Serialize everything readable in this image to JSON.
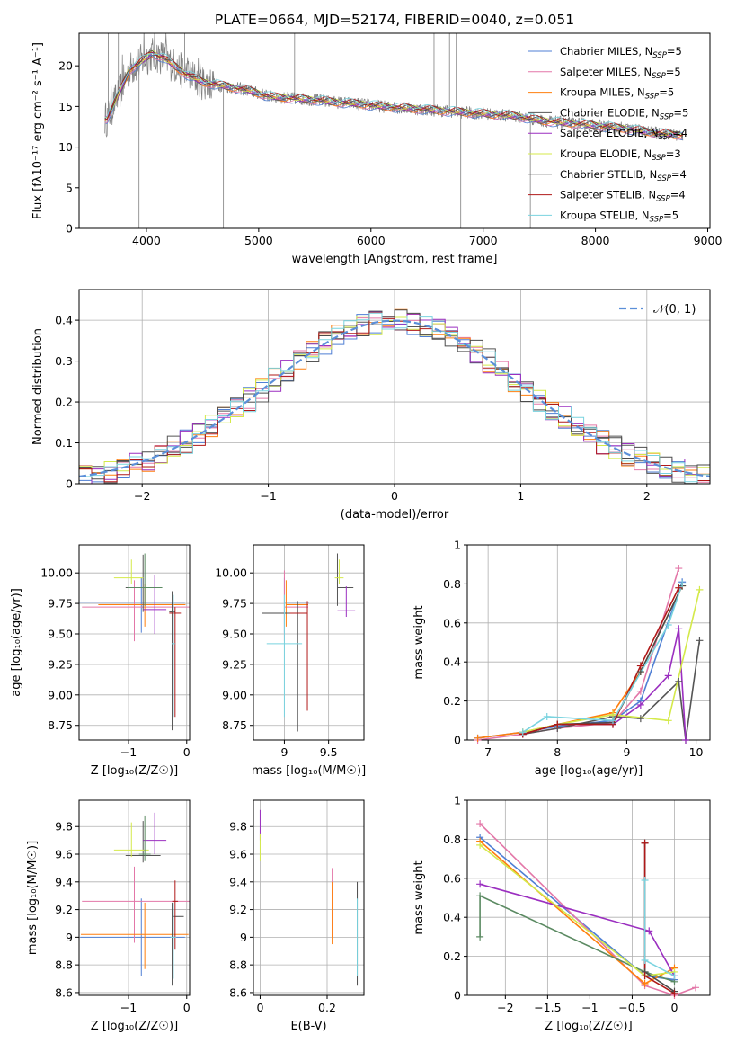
{
  "figure": {
    "title": "PLATE=0664, MJD=52174, FIBERID=0040, z=0.051"
  },
  "colors": {
    "chabrier_miles": "#4f7fd4",
    "salpeter_miles": "#e377a8",
    "kroupa_miles": "#ff7f0e",
    "chabrier_elodie": "#555555",
    "salpeter_elodie": "#9b2fc0",
    "kroupa_elodie": "#d4e94a",
    "chabrier_stelib": "#4b4b4b",
    "salpeter_stelib": "#b01919",
    "kroupa_stelib": "#79d3df",
    "data": "#7f7f7f",
    "gaussian": "#5b8fd9",
    "elodie_green": "#5b8a62"
  },
  "legend_spectrum": [
    {
      "name": "Chabrier MILES",
      "n": "5",
      "color_key": "chabrier_miles"
    },
    {
      "name": "Salpeter MILES",
      "n": "5",
      "color_key": "salpeter_miles"
    },
    {
      "name": "Kroupa MILES",
      "n": "5",
      "color_key": "kroupa_miles"
    },
    {
      "name": "Chabrier ELODIE",
      "n": "5",
      "color_key": "chabrier_elodie"
    },
    {
      "name": "Salpeter ELODIE",
      "n": "4",
      "color_key": "salpeter_elodie"
    },
    {
      "name": "Kroupa ELODIE",
      "n": "3",
      "color_key": "kroupa_elodie"
    },
    {
      "name": "Chabrier STELIB",
      "n": "4",
      "color_key": "chabrier_stelib"
    },
    {
      "name": "Salpeter STELIB",
      "n": "4",
      "color_key": "salpeter_stelib"
    },
    {
      "name": "Kroupa STELIB",
      "n": "5",
      "color_key": "kroupa_stelib"
    }
  ],
  "legend_hist": {
    "label": "𝒩(0, 1)"
  },
  "chart_data": [
    {
      "id": "spectrum",
      "type": "line",
      "xlabel": "wavelength [Angstrom, rest frame]",
      "ylabel": "Flux [fλ10⁻¹⁷ erg cm⁻² s⁻¹ A⁻¹]",
      "xlim": [
        3400,
        9020
      ],
      "ylim": [
        0,
        24
      ],
      "xticks": [
        4000,
        5000,
        6000,
        7000,
        8000,
        9000
      ],
      "yticks": [
        0,
        5,
        10,
        15,
        20
      ],
      "grid": false,
      "legend": "upper right",
      "continuum": {
        "x": [
          3650,
          3750,
          3850,
          3950,
          4050,
          4150,
          4250,
          4350,
          4500,
          4700,
          4900,
          5100,
          5300,
          5500,
          5700,
          5900,
          6100,
          6300,
          6500,
          6700,
          6900,
          7100,
          7300,
          7500,
          7700,
          7900,
          8100,
          8300,
          8500,
          8700
        ],
        "y": [
          13.5,
          16.5,
          19.5,
          20.5,
          21.5,
          21.0,
          20.0,
          19.0,
          18.0,
          17.5,
          17.0,
          16.2,
          16.0,
          15.8,
          15.5,
          15.3,
          15.0,
          14.8,
          14.6,
          14.4,
          14.2,
          14.0,
          13.8,
          13.3,
          13.0,
          12.8,
          12.5,
          12.2,
          11.8,
          11.5
        ]
      },
      "absorption_dips": [
        3934,
        4686,
        6800,
        7420
      ],
      "emission_spikes": [
        3660,
        3750,
        4340,
        5320,
        6562,
        6700,
        6760
      ]
    },
    {
      "id": "residual_hist",
      "type": "bar",
      "xlabel": "(data-model)/error",
      "ylabel": "Normed distribution",
      "xlim": [
        -2.5,
        2.5
      ],
      "ylim": [
        0,
        0.475
      ],
      "xticks": [
        -2,
        -1,
        0,
        1,
        2
      ],
      "yticks": [
        0.0,
        0.1,
        0.2,
        0.3,
        0.4
      ],
      "grid": true,
      "legend": "upper right",
      "bin_width": 0.1,
      "gaussian": {
        "mean": 0,
        "sigma": 1
      }
    },
    {
      "id": "age_vs_Z",
      "type": "scatter",
      "xlabel": "Z [log₁₀(Z/Z☉)]",
      "ylabel": "age  [log₁₀(age/yr)]",
      "xlim": [
        -1.85,
        0.05
      ],
      "ylim": [
        8.63,
        10.23
      ],
      "xticks": [
        -1,
        0
      ],
      "yticks": [
        8.75,
        9.0,
        9.25,
        9.5,
        9.75,
        10.0
      ],
      "ytick_labels": [
        "8.75",
        "9.00",
        "9.25",
        "9.50",
        "9.75",
        "10.00"
      ],
      "grid": true,
      "points": [
        {
          "series": "chabrier_miles",
          "x": -0.78,
          "y": 9.76,
          "xerr": [
            1.1,
            0.75
          ],
          "yerr": [
            0.25,
            0.2
          ]
        },
        {
          "series": "salpeter_miles",
          "x": -0.9,
          "y": 9.72,
          "xerr": [
            0.9,
            1.0
          ],
          "yerr": [
            0.28,
            0.22
          ]
        },
        {
          "series": "kroupa_miles",
          "x": -0.72,
          "y": 9.74,
          "xerr": [
            0.8,
            0.7
          ],
          "yerr": [
            0.18,
            0.17
          ]
        },
        {
          "series": "chabrier_elodie",
          "x": -0.75,
          "y": 9.88,
          "xerr": [
            0.3,
            0.25
          ],
          "yerr": [
            0.2,
            0.27
          ]
        },
        {
          "series": "salpeter_elodie",
          "x": -0.55,
          "y": 9.7,
          "xerr": [
            0.2,
            0.2
          ],
          "yerr": [
            0.2,
            0.28
          ]
        },
        {
          "series": "kroupa_elodie",
          "x": -0.95,
          "y": 9.96,
          "xerr": [
            0.3,
            0.2
          ],
          "yerr": [
            0.05,
            0.15
          ]
        },
        {
          "series": "chabrier_stelib",
          "x": -0.25,
          "y": 9.68,
          "xerr": [
            0.05,
            0.05
          ],
          "yerr": [
            0.97,
            0.17
          ]
        },
        {
          "series": "salpeter_stelib",
          "x": -0.2,
          "y": 9.67,
          "xerr": [
            0.1,
            0.1
          ],
          "yerr": [
            0.85,
            0.05
          ]
        },
        {
          "series": "kroupa_stelib",
          "x": -0.23,
          "y": 9.42,
          "xerr": [
            0.03,
            0.03
          ],
          "yerr": [
            0.6,
            0.4
          ]
        },
        {
          "series": "elodie_green",
          "x": -0.72,
          "y": 9.88,
          "xerr": [
            0.3,
            0.3
          ],
          "yerr": [
            0.15,
            0.28
          ]
        }
      ]
    },
    {
      "id": "age_vs_mass",
      "type": "scatter",
      "xlabel": "mass [log₁₀(M/M☉)]",
      "xlim": [
        8.65,
        9.9
      ],
      "ylim": [
        8.63,
        10.23
      ],
      "xticks": [
        9.0,
        9.5
      ],
      "yticks": [
        8.75,
        9.0,
        9.25,
        9.5,
        9.75,
        10.0
      ],
      "ytick_labels": [
        "8.75",
        "9.00",
        "9.25",
        "9.50",
        "9.75",
        "10.00"
      ],
      "grid": true,
      "points": [
        {
          "series": "chabrier_miles",
          "x": 9.0,
          "y": 9.76,
          "xerr": [
            0.0,
            0.28
          ],
          "yerr": [
            0.25,
            0.2
          ]
        },
        {
          "series": "salpeter_miles",
          "x": 9.0,
          "y": 9.72,
          "xerr": [
            0.0,
            0.27
          ],
          "yerr": [
            0.28,
            0.3
          ]
        },
        {
          "series": "kroupa_miles",
          "x": 9.02,
          "y": 9.74,
          "xerr": [
            0.0,
            0.25
          ],
          "yerr": [
            0.18,
            0.2
          ]
        },
        {
          "series": "chabrier_elodie",
          "x": 9.6,
          "y": 9.88,
          "xerr": [
            0.0,
            0.18
          ],
          "yerr": [
            0.15,
            0.28
          ]
        },
        {
          "series": "salpeter_elodie",
          "x": 9.7,
          "y": 9.69,
          "xerr": [
            0.1,
            0.1
          ],
          "yerr": [
            0.05,
            0.2
          ]
        },
        {
          "series": "kroupa_elodie",
          "x": 9.62,
          "y": 9.96,
          "xerr": [
            0.05,
            0.05
          ],
          "yerr": [
            0.05,
            0.15
          ]
        },
        {
          "series": "chabrier_stelib",
          "x": 9.15,
          "y": 9.67,
          "xerr": [
            0.4,
            0.1
          ],
          "yerr": [
            0.97,
            0.1
          ]
        },
        {
          "series": "salpeter_stelib",
          "x": 9.26,
          "y": 9.67,
          "xerr": [
            0.2,
            0.0
          ],
          "yerr": [
            0.8,
            0.1
          ]
        },
        {
          "series": "kroupa_stelib",
          "x": 9.0,
          "y": 9.42,
          "xerr": [
            0.2,
            0.2
          ],
          "yerr": [
            0.6,
            0.4
          ]
        }
      ]
    },
    {
      "id": "massweight_vs_age",
      "type": "line",
      "xlabel": "age  [log₁₀(age/yr)]",
      "ylabel": "mass weight",
      "xlim": [
        6.7,
        10.2
      ],
      "ylim": [
        0,
        1.0
      ],
      "xticks": [
        7,
        8,
        9,
        10
      ],
      "yticks": [
        0.0,
        0.2,
        0.4,
        0.6,
        0.8,
        1.0
      ],
      "grid": true,
      "series": [
        {
          "name": "Chabrier MILES",
          "color_key": "chabrier_miles",
          "x": [
            6.85,
            7.5,
            8.0,
            8.8,
            9.2,
            9.8
          ],
          "y": [
            0.01,
            0.04,
            0.07,
            0.1,
            0.2,
            0.81
          ]
        },
        {
          "name": "Salpeter MILES",
          "color_key": "salpeter_miles",
          "x": [
            6.85,
            7.5,
            8.0,
            8.8,
            9.2,
            9.75
          ],
          "y": [
            0.0,
            0.03,
            0.06,
            0.09,
            0.25,
            0.88
          ]
        },
        {
          "name": "Kroupa MILES",
          "color_key": "kroupa_miles",
          "x": [
            6.85,
            7.5,
            8.0,
            8.8,
            9.2,
            9.8
          ],
          "y": [
            0.01,
            0.04,
            0.08,
            0.14,
            0.35,
            0.79
          ]
        },
        {
          "name": "Chabrier ELODIE",
          "color_key": "chabrier_elodie",
          "x": [
            7.5,
            8.0,
            8.8,
            9.2,
            9.75,
            9.85,
            10.05
          ],
          "y": [
            0.03,
            0.06,
            0.12,
            0.11,
            0.3,
            0.0,
            0.51
          ]
        },
        {
          "name": "Salpeter ELODIE",
          "color_key": "salpeter_elodie",
          "x": [
            7.5,
            8.0,
            8.8,
            9.2,
            9.6,
            9.75,
            9.85
          ],
          "y": [
            0.03,
            0.08,
            0.08,
            0.18,
            0.33,
            0.57,
            0.0
          ]
        },
        {
          "name": "Kroupa ELODIE",
          "color_key": "kroupa_elodie",
          "x": [
            7.5,
            8.0,
            8.8,
            9.6,
            10.05
          ],
          "y": [
            0.04,
            0.08,
            0.13,
            0.1,
            0.77
          ]
        },
        {
          "name": "Chabrier STELIB",
          "color_key": "chabrier_stelib",
          "x": [
            7.5,
            8.0,
            8.8,
            9.2,
            9.8
          ],
          "y": [
            0.03,
            0.08,
            0.09,
            0.35,
            0.79
          ]
        },
        {
          "name": "Salpeter STELIB",
          "color_key": "salpeter_stelib",
          "x": [
            7.5,
            8.0,
            8.8,
            9.2,
            9.75
          ],
          "y": [
            0.03,
            0.08,
            0.08,
            0.38,
            0.78
          ]
        },
        {
          "name": "Kroupa STELIB",
          "color_key": "kroupa_stelib",
          "x": [
            7.5,
            7.85,
            8.8,
            9.6,
            9.8
          ],
          "y": [
            0.04,
            0.12,
            0.1,
            0.59,
            0.8
          ]
        }
      ]
    },
    {
      "id": "mass_vs_Z",
      "type": "scatter",
      "xlabel": "Z [log₁₀(Z/Z☉)]",
      "ylabel": "mass [log₁₀(M/M☉)]",
      "xlim": [
        -1.85,
        0.05
      ],
      "ylim": [
        8.58,
        9.99
      ],
      "xticks": [
        -1,
        0
      ],
      "yticks": [
        8.6,
        8.8,
        9.0,
        9.2,
        9.4,
        9.6,
        9.8
      ],
      "grid": true,
      "points": [
        {
          "series": "chabrier_miles",
          "x": -0.78,
          "y": 9.0,
          "xerr": [
            1.05,
            0.75
          ],
          "yerr": [
            0.28,
            0.28
          ]
        },
        {
          "series": "salpeter_miles",
          "x": -0.9,
          "y": 9.26,
          "xerr": [
            0.9,
            0.95
          ],
          "yerr": [
            0.3,
            0.25
          ]
        },
        {
          "series": "kroupa_miles",
          "x": -0.72,
          "y": 9.02,
          "xerr": [
            1.1,
            0.75
          ],
          "yerr": [
            0.25,
            0.23
          ]
        },
        {
          "series": "chabrier_elodie",
          "x": -0.75,
          "y": 9.59,
          "xerr": [
            0.3,
            0.3
          ],
          "yerr": [
            0.05,
            0.25
          ]
        },
        {
          "series": "salpeter_elodie",
          "x": -0.55,
          "y": 9.7,
          "xerr": [
            0.2,
            0.2
          ],
          "yerr": [
            0.1,
            0.2
          ]
        },
        {
          "series": "kroupa_elodie",
          "x": -0.95,
          "y": 9.63,
          "xerr": [
            0.3,
            0.3
          ],
          "yerr": [
            0.05,
            0.2
          ]
        },
        {
          "series": "chabrier_stelib",
          "x": -0.25,
          "y": 9.15,
          "xerr": [
            0.0,
            0.2
          ],
          "yerr": [
            0.5,
            0.1
          ]
        },
        {
          "series": "salpeter_stelib",
          "x": -0.2,
          "y": 9.26,
          "xerr": [
            0.05,
            0.05
          ],
          "yerr": [
            0.35,
            0.15
          ]
        },
        {
          "series": "kroupa_stelib",
          "x": -0.23,
          "y": 9.0,
          "xerr": [
            0.05,
            0.05
          ],
          "yerr": [
            0.3,
            0.25
          ]
        },
        {
          "series": "elodie_green",
          "x": -0.72,
          "y": 9.6,
          "xerr": [
            0.1,
            0.1
          ],
          "yerr": [
            0.05,
            0.28
          ]
        }
      ]
    },
    {
      "id": "mass_vs_ebv",
      "type": "scatter",
      "xlabel": "E(B-V)",
      "xlim": [
        -0.02,
        0.31
      ],
      "ylim": [
        8.58,
        9.99
      ],
      "xticks": [
        0.0,
        0.2
      ],
      "yticks": [
        8.6,
        8.8,
        9.0,
        9.2,
        9.4,
        9.6,
        9.8
      ],
      "grid": true,
      "vlines": [
        {
          "series": "salpeter_elodie",
          "x": 0.0,
          "y": [
            9.7,
            9.92
          ]
        },
        {
          "series": "kroupa_elodie",
          "x": 0.0,
          "y": [
            9.55,
            9.75
          ]
        },
        {
          "series": "salpeter_miles",
          "x": 0.215,
          "y": [
            9.0,
            9.5
          ]
        },
        {
          "series": "kroupa_miles",
          "x": 0.215,
          "y": [
            8.95,
            9.4
          ]
        },
        {
          "series": "chabrier_stelib",
          "x": 0.29,
          "y": [
            8.65,
            9.4
          ]
        },
        {
          "series": "kroupa_stelib",
          "x": 0.29,
          "y": [
            8.72,
            9.28
          ]
        }
      ]
    },
    {
      "id": "massweight_vs_Z",
      "type": "line",
      "xlabel": "Z [log₁₀(Z/Z☉)]",
      "ylabel": "mass weight",
      "xlim": [
        -2.45,
        0.42
      ],
      "ylim": [
        0,
        1.0
      ],
      "xticks": [
        -2.0,
        -1.5,
        -1.0,
        -0.5,
        0.0
      ],
      "yticks": [
        0.0,
        0.2,
        0.4,
        0.6,
        0.8,
        1.0
      ],
      "grid": true,
      "series": [
        {
          "name": "Chabrier MILES",
          "color_key": "chabrier_miles",
          "x": [
            -2.3,
            -0.35,
            0.0
          ],
          "y": [
            0.81,
            0.1,
            0.08
          ]
        },
        {
          "name": "Salpeter MILES",
          "color_key": "salpeter_miles",
          "x": [
            -2.3,
            -0.35,
            0.0,
            0.25
          ],
          "y": [
            0.88,
            0.05,
            0.0,
            0.04
          ]
        },
        {
          "name": "Kroupa MILES",
          "color_key": "kroupa_miles",
          "x": [
            -2.3,
            -0.35,
            0.0
          ],
          "y": [
            0.79,
            0.06,
            0.14
          ]
        },
        {
          "name": "Chabrier ELODIE",
          "color_key": "elodie_green",
          "x": [
            -2.3,
            -2.3,
            -0.35,
            0.0
          ],
          "y": [
            0.3,
            0.51,
            0.12,
            0.07
          ]
        },
        {
          "name": "Salpeter ELODIE",
          "color_key": "salpeter_elodie",
          "x": [
            -2.3,
            -0.3,
            0.0
          ],
          "y": [
            0.57,
            0.33,
            0.1
          ]
        },
        {
          "name": "Kroupa ELODIE",
          "color_key": "kroupa_elodie",
          "x": [
            -2.3,
            -0.35,
            0.0
          ],
          "y": [
            0.77,
            0.1,
            0.12
          ]
        },
        {
          "name": "Chabrier STELIB",
          "color_key": "chabrier_stelib",
          "x": [
            -0.35,
            -0.35,
            0.0
          ],
          "y": [
            0.78,
            0.12,
            0.02
          ]
        },
        {
          "name": "Salpeter STELIB",
          "color_key": "salpeter_stelib",
          "x": [
            -0.35,
            -0.35,
            0.0
          ],
          "y": [
            0.78,
            0.1,
            0.01
          ]
        },
        {
          "name": "Kroupa STELIB",
          "color_key": "kroupa_stelib",
          "x": [
            -0.35,
            -0.35,
            0.0
          ],
          "y": [
            0.59,
            0.18,
            0.1
          ]
        }
      ]
    }
  ]
}
